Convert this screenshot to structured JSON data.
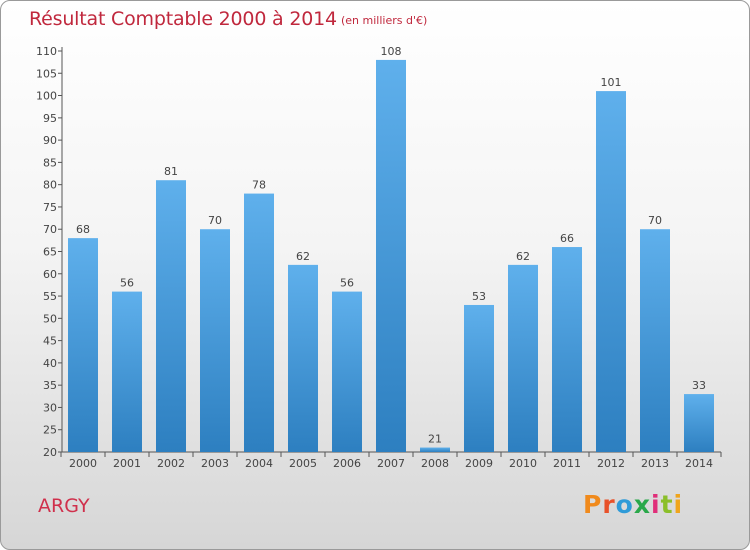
{
  "chart_data": {
    "type": "bar",
    "title": "Résultat Comptable 2000 à 2014",
    "subtitle": "(en milliers d'€)",
    "xlabel": "",
    "ylabel": "",
    "categories": [
      "2000",
      "2001",
      "2002",
      "2003",
      "2004",
      "2005",
      "2006",
      "2007",
      "2008",
      "2009",
      "2010",
      "2011",
      "2012",
      "2013",
      "2014"
    ],
    "values": [
      68,
      56,
      81,
      70,
      78,
      62,
      56,
      108,
      21,
      53,
      62,
      66,
      101,
      70,
      33
    ],
    "ylim": [
      20,
      110
    ],
    "ytick_step": 5,
    "grid": false,
    "bar_color_top": "#5fb0ec",
    "bar_color_bottom": "#2d7fc0"
  },
  "footer": {
    "commune": "ARGY",
    "logo_text": "Proxiti",
    "logo_colors": [
      "#f08a1c",
      "#e8522a",
      "#2f9bd8",
      "#2aa84a",
      "#e02f7a",
      "#8bbf2a",
      "#f0a51c"
    ]
  }
}
